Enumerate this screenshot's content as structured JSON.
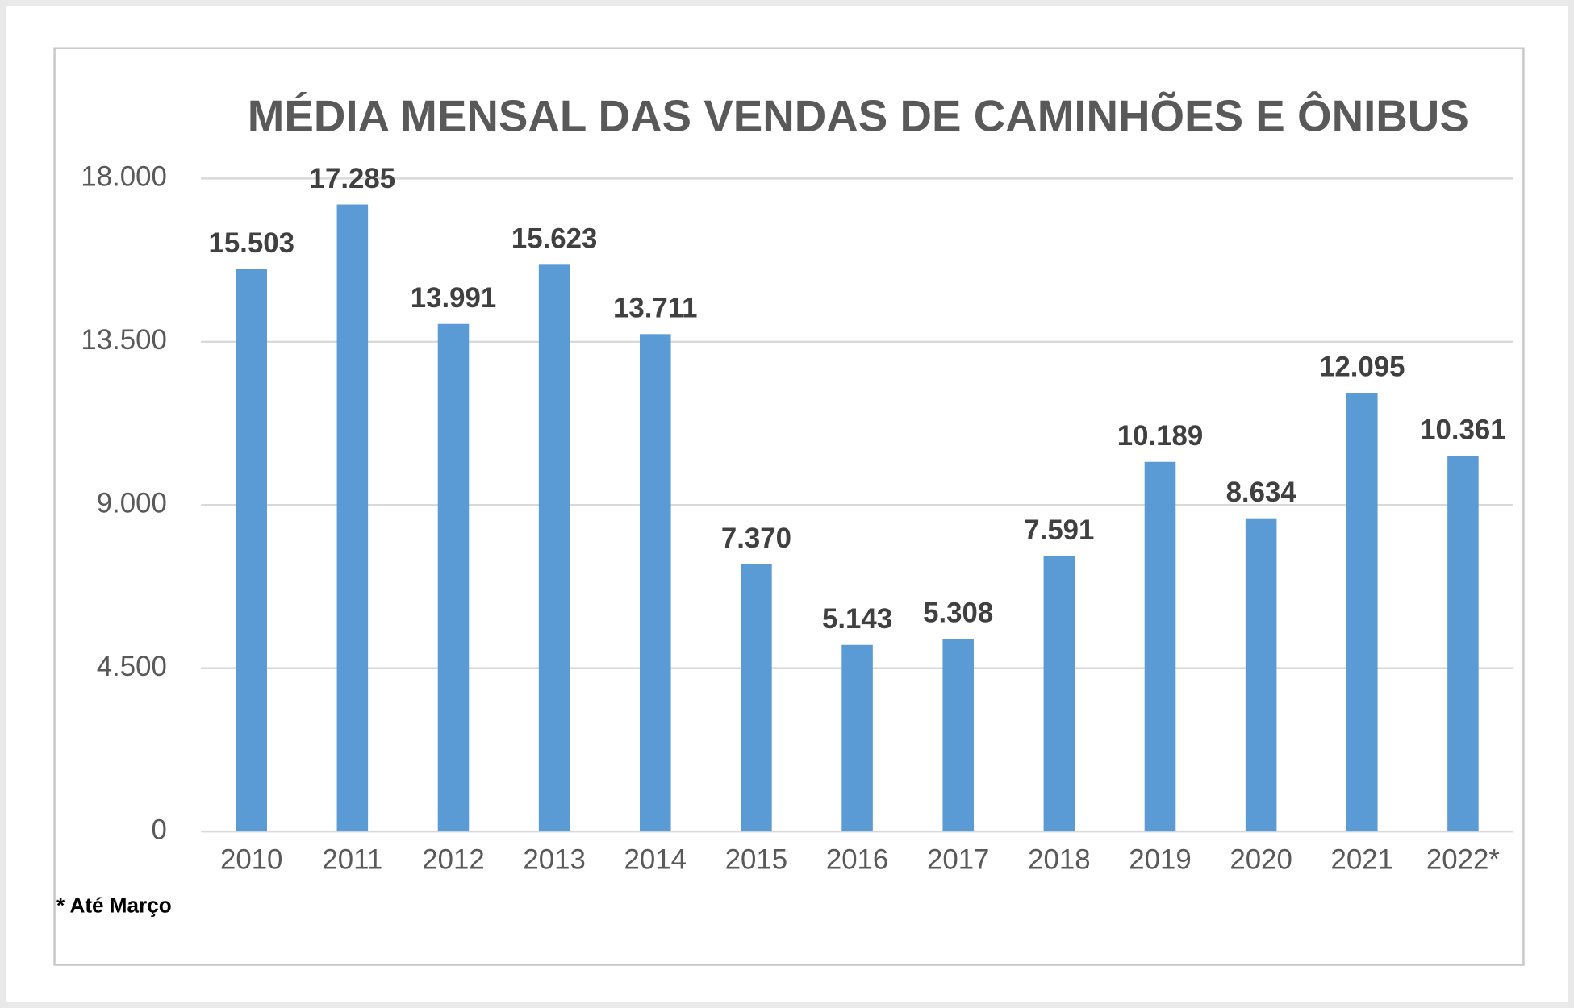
{
  "chart_data": {
    "type": "bar",
    "title": "MÉDIA MENSAL DAS VENDAS DE CAMINHÕES E ÔNIBUS",
    "annotation": "* Até Março",
    "categories": [
      "2010",
      "2011",
      "2012",
      "2013",
      "2014",
      "2015",
      "2016",
      "2017",
      "2018",
      "2019",
      "2020",
      "2021",
      "2022*"
    ],
    "values": [
      15503,
      17285,
      13991,
      15623,
      13711,
      7370,
      5143,
      5308,
      7591,
      10189,
      8634,
      12095,
      10361
    ],
    "value_labels": [
      "15.503",
      "17.285",
      "13.991",
      "15.623",
      "13.711",
      "7.370",
      "5.143",
      "5.308",
      "7.591",
      "10.189",
      "8.634",
      "12.095",
      "10.361"
    ],
    "color": "#5b9bd5",
    "ylim": [
      0,
      18000
    ],
    "yticks": [
      0,
      {
        "value": 4500,
        "label": "4.500"
      },
      {
        "value": 9000,
        "label": "9.000"
      },
      {
        "value": 13500,
        "label": "13.500"
      },
      {
        "value": 18000,
        "label": "18.000"
      }
    ],
    "grid": true
  }
}
